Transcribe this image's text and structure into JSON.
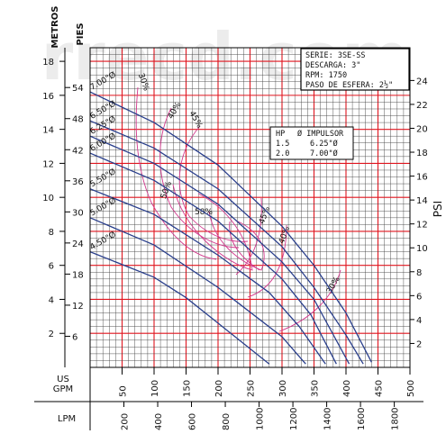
{
  "chart_data": {
    "type": "line",
    "watermark": "rrecd.com",
    "info_box": {
      "lines": [
        "SERIE: 3SE-SS",
        "DESCARGA: 3\"",
        "RPM: 1750",
        "PASO DE ESFERA: 2½\""
      ]
    },
    "hp_table": {
      "headers": [
        "HP",
        "Ø IMPULSOR"
      ],
      "rows": [
        [
          "1.5",
          "6.25\"Ø"
        ],
        [
          "2.0",
          "7.00\"Ø"
        ]
      ]
    },
    "axes": {
      "metros_label": "METROS",
      "pies_label": "PIES",
      "psi_label": "PSI",
      "gpm_label_1": "US",
      "gpm_label_2": "GPM",
      "lpm_label": "LPM",
      "x_range_gpm": [
        0,
        500
      ],
      "metros_range": [
        0,
        18.8
      ],
      "metros_ticks": [
        2,
        4,
        6,
        8,
        10,
        12,
        14,
        16,
        18
      ],
      "pies_ticks": [
        6,
        12,
        18,
        24,
        30,
        36,
        42,
        48,
        54
      ],
      "psi_ticks": [
        2,
        4,
        6,
        8,
        10,
        12,
        14,
        16,
        18,
        20,
        22,
        24
      ],
      "gpm_ticks": [
        50,
        100,
        150,
        200,
        250,
        300,
        350,
        400,
        450,
        500
      ],
      "lpm_ticks": [
        200,
        400,
        600,
        800,
        1000,
        1200,
        1400,
        1600,
        1800
      ]
    },
    "series": [
      {
        "name": "7.00\"Ø",
        "x": [
          0,
          100,
          200,
          300,
          350,
          400,
          440
        ],
        "y": [
          16.2,
          14.4,
          11.9,
          8.3,
          6.0,
          3.2,
          0.3
        ]
      },
      {
        "name": "6.50\"Ø",
        "x": [
          0,
          100,
          200,
          300,
          350,
          400,
          427
        ],
        "y": [
          14.5,
          12.9,
          10.5,
          7.1,
          4.7,
          1.9,
          0.2
        ]
      },
      {
        "name": "6.25\"Ø",
        "x": [
          0,
          100,
          200,
          300,
          350,
          405
        ],
        "y": [
          13.6,
          12.0,
          9.6,
          6.2,
          4.0,
          0.2
        ]
      },
      {
        "name": "6.00\"Ø",
        "x": [
          0,
          100,
          200,
          300,
          345,
          385
        ],
        "y": [
          12.6,
          11.0,
          8.6,
          5.2,
          3.1,
          0.2
        ]
      },
      {
        "name": "5.50\"Ø",
        "x": [
          0,
          100,
          200,
          280,
          327,
          368
        ],
        "y": [
          10.5,
          9.0,
          6.6,
          4.4,
          2.4,
          0.2
        ]
      },
      {
        "name": "5.00\"Ø",
        "x": [
          0,
          100,
          200,
          300,
          337
        ],
        "y": [
          8.8,
          7.2,
          4.7,
          1.8,
          0.2
        ]
      },
      {
        "name": "4.50\"Ø",
        "x": [
          0,
          100,
          150,
          200,
          250,
          280
        ],
        "y": [
          6.8,
          5.3,
          4.1,
          2.6,
          1.1,
          0.2
        ]
      }
    ],
    "efficiency_labels": [
      "30%",
      "40%",
      "45%",
      "50%",
      "58%",
      "45%",
      "40%",
      "30%"
    ]
  }
}
